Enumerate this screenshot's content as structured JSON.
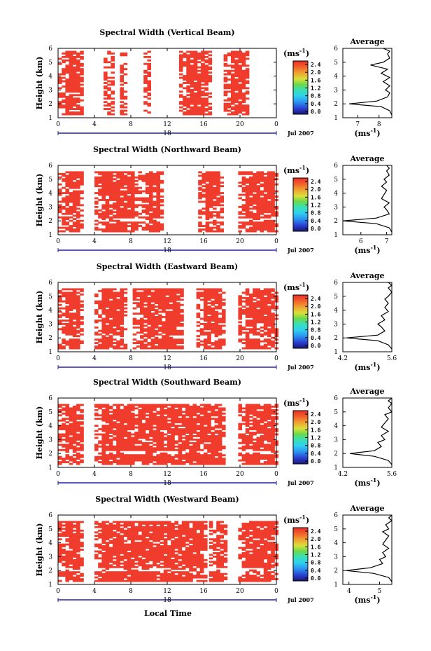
{
  "figure": {
    "xlabel": "Local Time",
    "day_label": "18",
    "date_label": "Jul 2007",
    "ylabel": "Height (km)",
    "unit_label": "(ms",
    "unit_sup": "-1",
    "average_title": "Average",
    "colors": {
      "data": "#f03c2d",
      "axis_line": "#2222aa"
    }
  },
  "chart_data": [
    {
      "type": "heatmap",
      "title": "Spectral Width (Vertical Beam)",
      "x_ticks": [
        "0",
        "4",
        "8",
        "12",
        "16",
        "20",
        "0"
      ],
      "xlim": [
        0,
        24
      ],
      "y_ticks": [
        "1",
        "2",
        "3",
        "4",
        "5",
        "6"
      ],
      "ylim": [
        1,
        6
      ],
      "colorbar_ticks": [
        "0.0",
        "0.4",
        "0.8",
        "1.2",
        "1.6",
        "2.0",
        "2.4"
      ],
      "data_columns": [
        [
          0.0,
          2.8
        ],
        [
          5.0,
          6.2
        ],
        [
          6.8,
          7.6
        ],
        [
          9.4,
          10.2
        ],
        [
          13.3,
          16.8
        ],
        [
          18.2,
          21.0
        ]
      ],
      "average": {
        "x_ticks": [
          "7",
          "8"
        ],
        "xlim": [
          6.3,
          8.6
        ],
        "ylim": [
          1,
          6
        ],
        "profile": [
          [
            1.2,
            8.6
          ],
          [
            1.5,
            8.5
          ],
          [
            1.8,
            8.1
          ],
          [
            2.0,
            6.6
          ],
          [
            2.2,
            7.9
          ],
          [
            2.5,
            8.4
          ],
          [
            2.8,
            8.5
          ],
          [
            3.0,
            8.3
          ],
          [
            3.3,
            8.5
          ],
          [
            3.6,
            8.2
          ],
          [
            3.9,
            8.5
          ],
          [
            4.2,
            8.1
          ],
          [
            4.5,
            8.4
          ],
          [
            4.8,
            7.6
          ],
          [
            5.0,
            8.2
          ],
          [
            5.3,
            8.5
          ],
          [
            5.6,
            8.4
          ],
          [
            5.8,
            8.5
          ],
          [
            6.0,
            8.2
          ]
        ]
      }
    },
    {
      "type": "heatmap",
      "title": "Spectral Width (Northward Beam)",
      "x_ticks": [
        "0",
        "4",
        "8",
        "12",
        "16",
        "20",
        "0"
      ],
      "xlim": [
        0,
        24
      ],
      "y_ticks": [
        "1",
        "2",
        "3",
        "4",
        "5",
        "6"
      ],
      "ylim": [
        1,
        6
      ],
      "colorbar_ticks": [
        "0.0",
        "0.4",
        "0.8",
        "1.2",
        "1.6",
        "2.0",
        "2.4"
      ],
      "data_columns": [
        [
          0.0,
          2.7
        ],
        [
          4.0,
          8.6
        ],
        [
          8.8,
          11.6
        ],
        [
          15.4,
          18.2
        ],
        [
          19.8,
          24.0
        ]
      ],
      "average": {
        "x_ticks": [
          "6",
          "7"
        ],
        "xlim": [
          5.3,
          7.2
        ],
        "ylim": [
          1,
          6
        ],
        "profile": [
          [
            1.2,
            7.2
          ],
          [
            1.5,
            7.1
          ],
          [
            1.8,
            6.6
          ],
          [
            2.0,
            5.3
          ],
          [
            2.2,
            6.6
          ],
          [
            2.5,
            7.1
          ],
          [
            2.8,
            7.0
          ],
          [
            3.0,
            6.9
          ],
          [
            3.3,
            7.1
          ],
          [
            3.6,
            6.8
          ],
          [
            3.9,
            6.9
          ],
          [
            4.2,
            7.0
          ],
          [
            4.5,
            6.8
          ],
          [
            4.8,
            7.0
          ],
          [
            5.0,
            6.9
          ],
          [
            5.3,
            7.1
          ],
          [
            5.6,
            7.0
          ],
          [
            5.8,
            7.1
          ],
          [
            6.0,
            7.0
          ]
        ]
      }
    },
    {
      "type": "heatmap",
      "title": "Spectral Width (Eastward Beam)",
      "x_ticks": [
        "0",
        "4",
        "8",
        "12",
        "16",
        "20",
        "0"
      ],
      "xlim": [
        0,
        24
      ],
      "y_ticks": [
        "1",
        "2",
        "3",
        "4",
        "5",
        "6"
      ],
      "ylim": [
        1,
        6
      ],
      "colorbar_ticks": [
        "0.0",
        "0.4",
        "0.8",
        "1.2",
        "1.6",
        "2.0",
        "2.4"
      ],
      "data_columns": [
        [
          0.0,
          2.8
        ],
        [
          4.0,
          7.6
        ],
        [
          8.2,
          13.8
        ],
        [
          15.2,
          18.2
        ],
        [
          19.8,
          24.0
        ]
      ],
      "average": {
        "x_ticks": [
          "4.2",
          "5.6"
        ],
        "xlim": [
          4.2,
          5.6
        ],
        "ylim": [
          1,
          6
        ],
        "profile": [
          [
            1.2,
            5.6
          ],
          [
            1.5,
            5.5
          ],
          [
            1.8,
            5.2
          ],
          [
            2.0,
            4.3
          ],
          [
            2.2,
            5.2
          ],
          [
            2.5,
            5.4
          ],
          [
            2.8,
            5.3
          ],
          [
            3.0,
            5.2
          ],
          [
            3.3,
            5.4
          ],
          [
            3.6,
            5.3
          ],
          [
            3.9,
            5.5
          ],
          [
            4.2,
            5.4
          ],
          [
            4.5,
            5.5
          ],
          [
            4.8,
            5.4
          ],
          [
            5.0,
            5.5
          ],
          [
            5.3,
            5.6
          ],
          [
            5.6,
            5.5
          ],
          [
            5.8,
            5.6
          ],
          [
            6.0,
            5.5
          ]
        ]
      }
    },
    {
      "type": "heatmap",
      "title": "Spectral Width (Southward Beam)",
      "x_ticks": [
        "0",
        "4",
        "8",
        "12",
        "16",
        "20",
        "0"
      ],
      "xlim": [
        0,
        24
      ],
      "y_ticks": [
        "1",
        "2",
        "3",
        "4",
        "5",
        "6"
      ],
      "ylim": [
        1,
        6
      ],
      "colorbar_ticks": [
        "0.0",
        "0.4",
        "0.8",
        "1.2",
        "1.6",
        "2.0",
        "2.4"
      ],
      "data_columns": [
        [
          0.0,
          2.7
        ],
        [
          4.0,
          18.2
        ],
        [
          19.8,
          24.0
        ]
      ],
      "average": {
        "x_ticks": [
          "4.2",
          "5.6"
        ],
        "xlim": [
          4.2,
          5.6
        ],
        "ylim": [
          1,
          6
        ],
        "profile": [
          [
            1.2,
            5.6
          ],
          [
            1.5,
            5.5
          ],
          [
            1.8,
            5.1
          ],
          [
            2.0,
            4.4
          ],
          [
            2.2,
            5.1
          ],
          [
            2.5,
            5.3
          ],
          [
            2.8,
            5.2
          ],
          [
            3.0,
            5.4
          ],
          [
            3.3,
            5.3
          ],
          [
            3.6,
            5.5
          ],
          [
            3.9,
            5.3
          ],
          [
            4.2,
            5.4
          ],
          [
            4.5,
            5.5
          ],
          [
            4.8,
            5.4
          ],
          [
            5.0,
            5.6
          ],
          [
            5.3,
            5.5
          ],
          [
            5.6,
            5.6
          ],
          [
            5.8,
            5.5
          ],
          [
            6.0,
            5.6
          ]
        ]
      }
    },
    {
      "type": "heatmap",
      "title": "Spectral Width (Westward Beam)",
      "x_ticks": [
        "0",
        "4",
        "8",
        "12",
        "16",
        "20",
        "0"
      ],
      "xlim": [
        0,
        24
      ],
      "y_ticks": [
        "1",
        "2",
        "3",
        "4",
        "5",
        "6"
      ],
      "ylim": [
        1,
        6
      ],
      "colorbar_ticks": [
        "0.0",
        "0.4",
        "0.8",
        "1.2",
        "1.6",
        "2.0",
        "2.4"
      ],
      "data_columns": [
        [
          0.0,
          2.8
        ],
        [
          4.0,
          16.2
        ],
        [
          16.6,
          18.4
        ],
        [
          19.8,
          24.0
        ]
      ],
      "average": {
        "x_ticks": [
          "4",
          "5"
        ],
        "xlim": [
          3.8,
          5.4
        ],
        "ylim": [
          1,
          6
        ],
        "profile": [
          [
            1.2,
            5.4
          ],
          [
            1.5,
            5.3
          ],
          [
            1.8,
            4.8
          ],
          [
            2.0,
            3.9
          ],
          [
            2.2,
            4.7
          ],
          [
            2.5,
            5.1
          ],
          [
            2.8,
            5.0
          ],
          [
            3.0,
            5.2
          ],
          [
            3.3,
            5.1
          ],
          [
            3.6,
            5.3
          ],
          [
            3.9,
            5.1
          ],
          [
            4.2,
            5.2
          ],
          [
            4.5,
            5.3
          ],
          [
            4.8,
            5.1
          ],
          [
            5.0,
            5.3
          ],
          [
            5.3,
            5.2
          ],
          [
            5.6,
            5.4
          ],
          [
            5.8,
            5.3
          ],
          [
            6.0,
            5.4
          ]
        ]
      }
    }
  ]
}
